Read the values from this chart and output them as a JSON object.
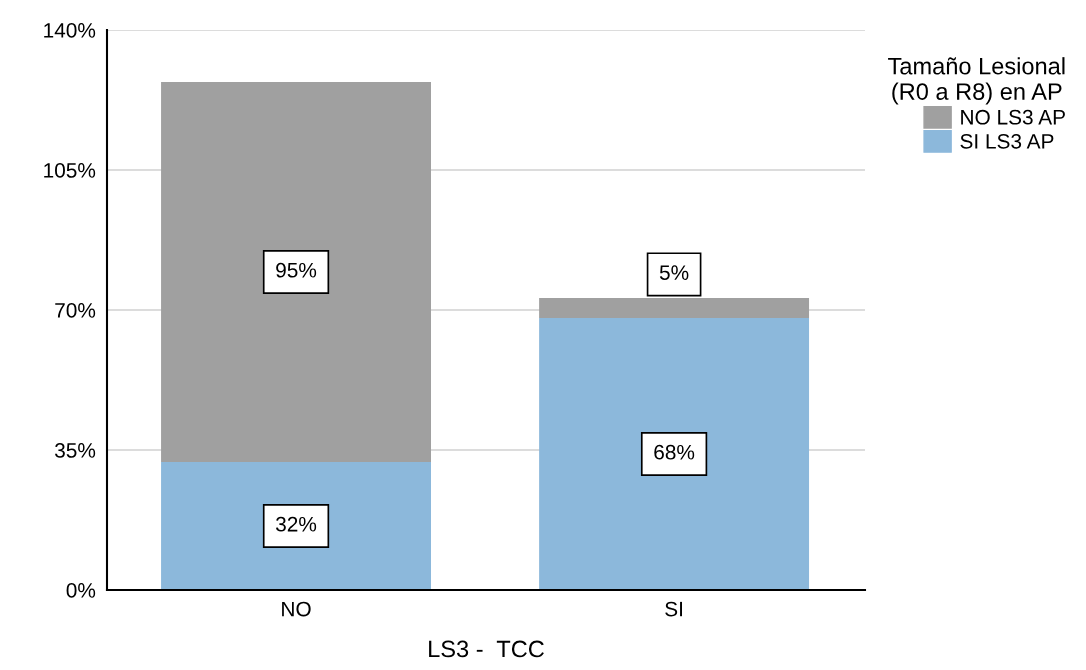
{
  "chart_data": {
    "type": "bar",
    "stacked": true,
    "xlabel": "LS3 -  TCC",
    "legend_title": "Tamaño Lesional\n(R0 a R8) en AP",
    "categories": [
      "NO",
      "SI"
    ],
    "series": [
      {
        "name": "SI LS3 AP",
        "color": "#8cb8db",
        "values": [
          32,
          68
        ],
        "value_labels": [
          "32%",
          "68%"
        ]
      },
      {
        "name": "NO LS3 AP",
        "color": "#a0a0a0",
        "values": [
          95,
          5
        ],
        "value_labels": [
          "95%",
          "5%"
        ]
      }
    ],
    "ylim": [
      0,
      140
    ],
    "yticks": [
      {
        "value": 0,
        "label": "0%"
      },
      {
        "value": 35,
        "label": "35%"
      },
      {
        "value": 70,
        "label": "70%"
      },
      {
        "value": 105,
        "label": "105%"
      },
      {
        "value": 140,
        "label": "140%"
      }
    ],
    "grid": "y",
    "legend": "top right"
  }
}
